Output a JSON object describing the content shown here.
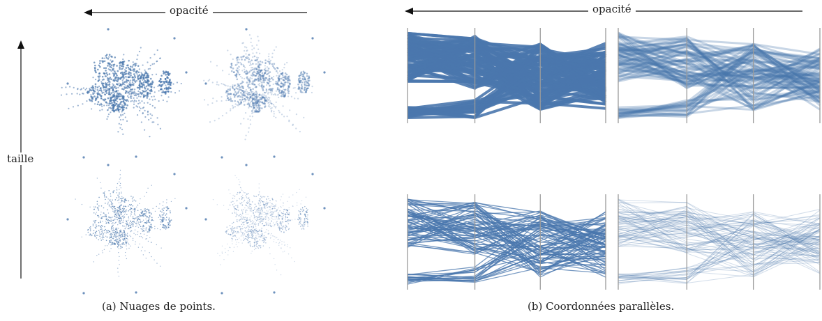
{
  "labels": {
    "opacity_left": "opacité",
    "opacity_right": "opacité",
    "size": "taille"
  },
  "captions": {
    "scatter": "(a) Nuages de points.",
    "parallel": "(b) Coordonnées parallèles."
  },
  "colors": {
    "accent": "#4a77ad",
    "axis": "#9a9a9a",
    "arrow": "#111111"
  },
  "panels": {
    "scatter": [
      {
        "size": "large",
        "opacity": "high"
      },
      {
        "size": "large",
        "opacity": "low"
      },
      {
        "size": "small",
        "opacity": "high"
      },
      {
        "size": "small",
        "opacity": "low"
      }
    ],
    "parallel": [
      {
        "size": "large",
        "opacity": 0.9,
        "stroke": 4.0
      },
      {
        "size": "large",
        "opacity": 0.3,
        "stroke": 3.0
      },
      {
        "size": "small",
        "opacity": 0.75,
        "stroke": 1.3
      },
      {
        "size": "small",
        "opacity": 0.25,
        "stroke": 1.0
      }
    ]
  }
}
